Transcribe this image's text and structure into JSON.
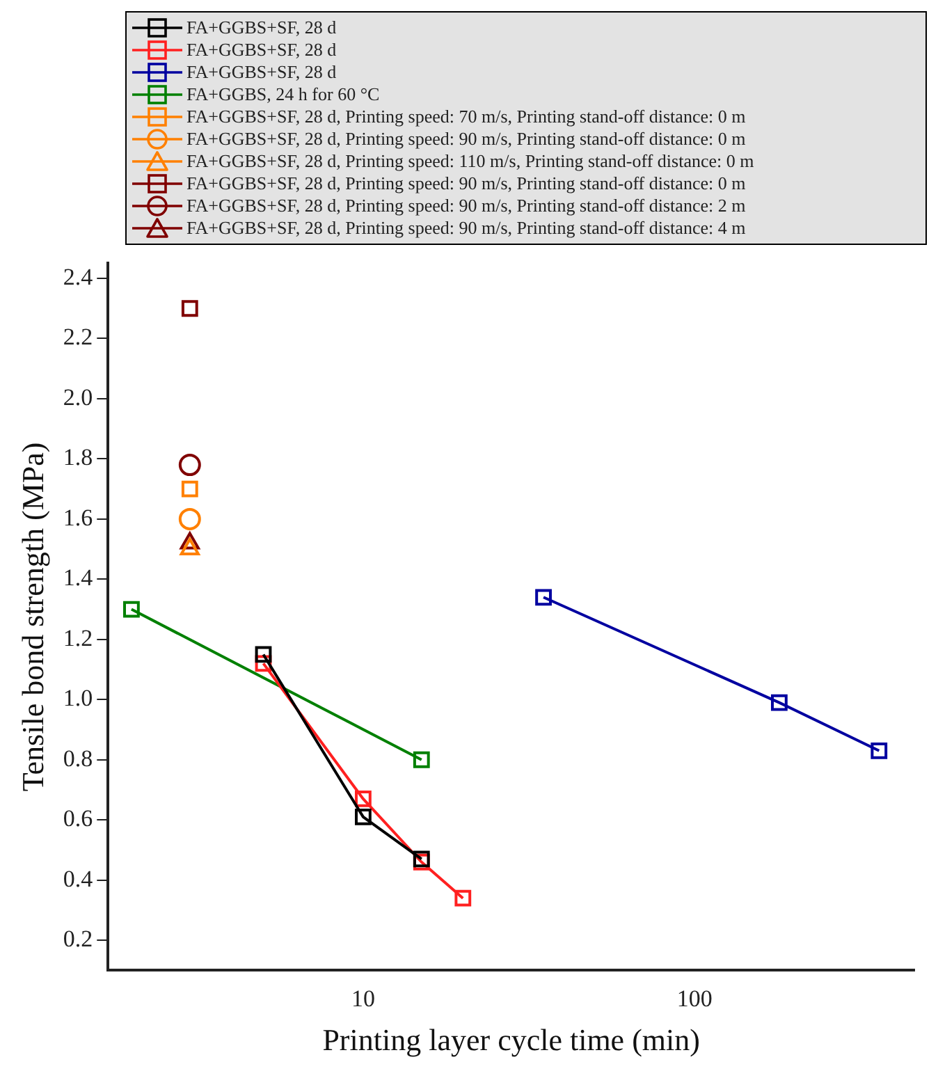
{
  "chart_data": {
    "type": "line",
    "xlabel": "Printing layer cycle time (min)",
    "ylabel": "Tensile bond strength (MPa)",
    "log": "x",
    "xlim": [
      1.7,
      460
    ],
    "xticks": [
      10,
      100
    ],
    "ylim": [
      0.1,
      2.45
    ],
    "yticks": [
      0.2,
      0.4,
      0.6,
      0.8,
      {
        "value": 1,
        "label": "1.0"
      },
      1.2,
      1.4,
      1.6,
      1.8,
      {
        "value": 2,
        "label": "2.0"
      },
      2.2,
      2.4
    ],
    "grid": false,
    "legend": "top",
    "marker": "square",
    "series": [
      {
        "name": "FA+GGBS+SF, 28 d",
        "color": "#000000",
        "x": [
          5,
          10,
          15
        ],
        "values": [
          1.15,
          0.61,
          0.47
        ]
      },
      {
        "name": "FA+GGBS+SF, 28 d",
        "color": "#ff2020",
        "x": [
          5,
          10,
          15,
          20
        ],
        "values": [
          1.12,
          0.67,
          0.46,
          0.34
        ]
      },
      {
        "name": "FA+GGBS+SF, 28 d",
        "color": "#0000a0",
        "x": [
          35,
          180,
          360
        ],
        "values": [
          1.34,
          0.99,
          0.83
        ]
      },
      {
        "name": "FA+GGBS, 24 h for 60 °C",
        "color": "#008000",
        "x": [
          2,
          15
        ],
        "values": [
          1.3,
          0.8
        ]
      },
      {
        "name": "FA+GGBS+SF, 28 d, Printing speed: 70 m/s, Printing stand-off distance: 0 m",
        "type": "scatter",
        "marker": "square",
        "color": "#ff8000",
        "x": [
          3
        ],
        "values": [
          1.7
        ]
      },
      {
        "name": "FA+GGBS+SF, 28 d, Printing speed: 90 m/s, Printing stand-off distance: 0 m",
        "type": "scatter",
        "marker": "circle",
        "color": "#ff8000",
        "x": [
          3
        ],
        "values": [
          1.6
        ]
      },
      {
        "name": "FA+GGBS+SF, 28 d, Printing speed: 110 m/s, Printing stand-off distance: 0 m",
        "type": "scatter",
        "marker": "triangle",
        "color": "#ff8000",
        "x": [
          3
        ],
        "values": [
          1.5
        ]
      },
      {
        "name": "FA+GGBS+SF, 28 d, Printing speed: 90 m/s, Printing stand-off distance: 0 m",
        "type": "scatter",
        "marker": "square",
        "color": "#800000",
        "x": [
          3
        ],
        "values": [
          2.3
        ]
      },
      {
        "name": "FA+GGBS+SF, 28 d, Printing speed: 90 m/s, Printing stand-off distance: 2 m",
        "type": "scatter",
        "marker": "circle",
        "color": "#800000",
        "x": [
          3
        ],
        "values": [
          1.78
        ]
      },
      {
        "name": "FA+GGBS+SF, 28 d, Printing speed: 90 m/s, Printing stand-off distance: 4 m",
        "type": "scatter",
        "marker": "triangle",
        "color": "#800000",
        "x": [
          3
        ],
        "values": [
          1.52
        ]
      }
    ]
  }
}
